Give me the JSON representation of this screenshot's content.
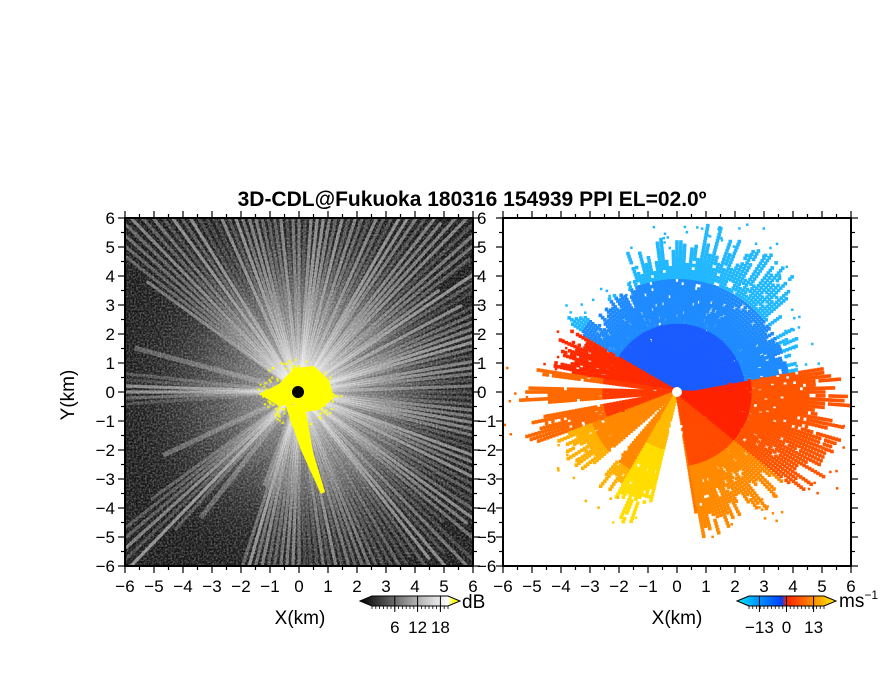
{
  "chart_data": {
    "type": "heatmap",
    "title": "3D-CDL@Fukuoka 180316 154939 PPI EL=02.0º",
    "panels": [
      {
        "name": "reflectivity",
        "xlabel": "X(km)",
        "ylabel": "Y(km)",
        "xlim": [
          -6,
          6
        ],
        "ylim": [
          -6,
          6
        ],
        "xticks": [
          "−6",
          "−5",
          "−4",
          "−3",
          "−2",
          "−1",
          "0",
          "1",
          "2",
          "3",
          "4",
          "5",
          "6"
        ],
        "yticks": [
          "−6",
          "−5",
          "−4",
          "−3",
          "−2",
          "−1",
          "0",
          "1",
          "2",
          "3",
          "4",
          "5",
          "6"
        ],
        "colorbar": {
          "unit": "dB",
          "ticks": [
            "6",
            "12",
            "18"
          ],
          "tick_values": [
            6,
            12,
            18
          ],
          "range": [
            0,
            20
          ],
          "colors": [
            "#000000",
            "#ffffff",
            "#ffff00"
          ]
        }
      },
      {
        "name": "doppler-velocity",
        "xlabel": "X(km)",
        "ylabel": "",
        "xlim": [
          -6,
          6
        ],
        "ylim": [
          -6,
          6
        ],
        "xticks": [
          "−6",
          "−5",
          "−4",
          "−3",
          "−2",
          "−1",
          "0",
          "1",
          "2",
          "3",
          "4",
          "5",
          "6"
        ],
        "yticks": [
          "−6",
          "−5",
          "−4",
          "−3",
          "−2",
          "−1",
          "0",
          "1",
          "2",
          "3",
          "4",
          "5",
          "6"
        ],
        "colorbar": {
          "unit": "ms",
          "unit_exp": "−1",
          "ticks": [
            "−13",
            "0",
            "13"
          ],
          "tick_values": [
            -13,
            0,
            13
          ],
          "range": [
            -18,
            18
          ],
          "colors": [
            "#00e5ff",
            "#0040ff",
            "#ff2000",
            "#ffee00"
          ]
        }
      }
    ]
  }
}
